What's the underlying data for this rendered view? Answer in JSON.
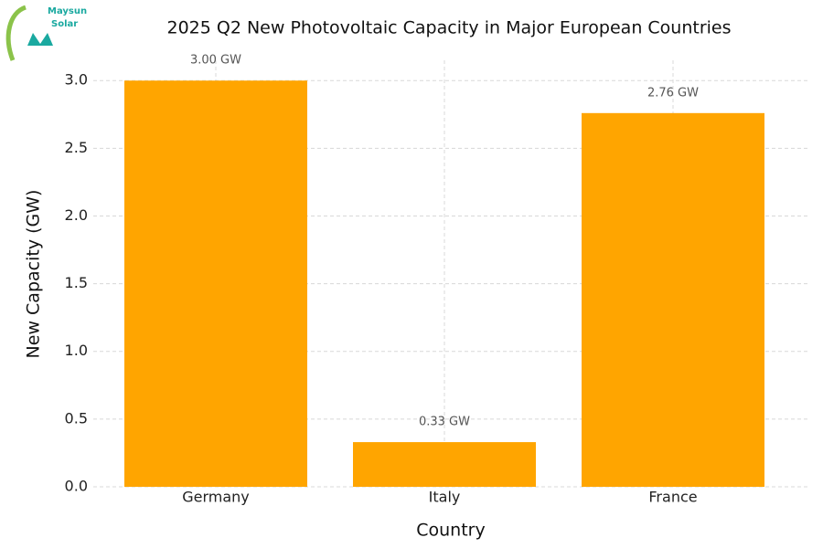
{
  "logo_text": [
    "Maysun",
    "Solar"
  ],
  "chart_data": {
    "type": "bar",
    "title": "2025 Q2 New Photovoltaic Capacity in Major European Countries",
    "x_label": "Country",
    "y_label": "New Capacity (GW)",
    "categories": [
      "Germany",
      "Italy",
      "France"
    ],
    "values": [
      3.0,
      0.33,
      2.76
    ],
    "value_labels": [
      "3.00 GW",
      "0.33 GW",
      "2.76 GW"
    ],
    "color": "#ffa500",
    "ylim": [
      0,
      3.15
    ],
    "yticks": [
      {
        "value": 0,
        "label": "0.0"
      },
      0.5,
      {
        "value": 1,
        "label": "1.0"
      },
      1.5,
      {
        "value": 2,
        "label": "2.0"
      },
      2.5,
      {
        "value": 3,
        "label": "3.0"
      }
    ],
    "grid": true
  }
}
